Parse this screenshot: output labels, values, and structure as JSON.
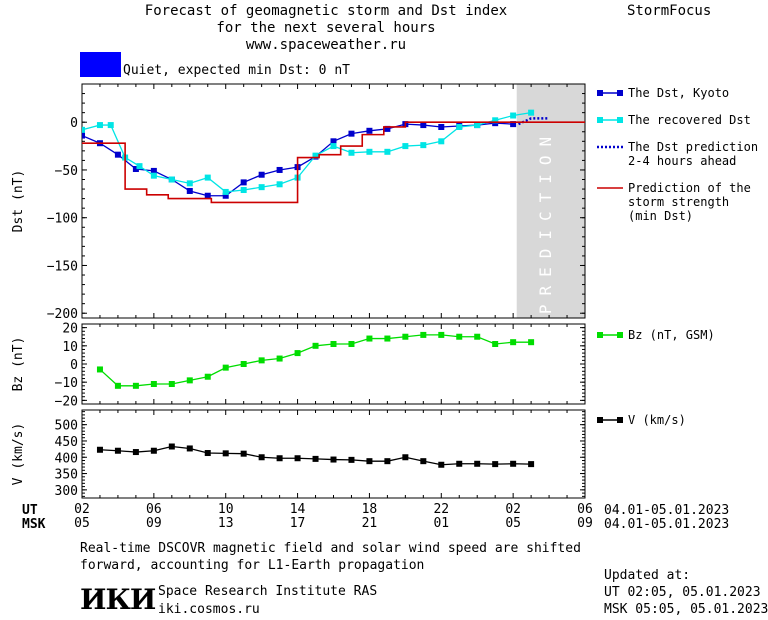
{
  "header": {
    "title_lines": [
      "Forecast of geomagnetic storm and Dst index",
      "for the next several hours",
      "www.spaceweather.ru"
    ],
    "brand": "StormFocus",
    "status_text": "Quiet, expected min Dst: 0 nT",
    "status_color": "#0000ff"
  },
  "chart_data": [
    {
      "type": "line",
      "name": "dst-panel",
      "ylabel": "Dst (nT)",
      "ylim": [
        -205,
        40
      ],
      "yticks": [
        0,
        -50,
        -100,
        -150,
        -200
      ],
      "x_range_hours": [
        0,
        28
      ],
      "prediction_band": [
        24.2,
        28
      ],
      "prediction_label": "PREDICTION",
      "series": [
        {
          "name": "The Dst, Kyoto",
          "color": "#0000cc",
          "marker": "square",
          "x": [
            0,
            1,
            2,
            3,
            4,
            5,
            6,
            7,
            8,
            9,
            10,
            11,
            12,
            13,
            14,
            15,
            16,
            17,
            18,
            19,
            20,
            21,
            22,
            23,
            24
          ],
          "y": [
            -14,
            -22,
            -34,
            -49,
            -51,
            -60,
            -72,
            -77,
            -77,
            -63,
            -55,
            -50,
            -47,
            -36,
            -20,
            -12,
            -9,
            -7,
            -2,
            -3,
            -5,
            -4,
            -3,
            -1,
            -2
          ]
        },
        {
          "name": "The recovered Dst",
          "color": "#00e5e5",
          "marker": "square",
          "x": [
            0,
            1,
            1.6,
            2.4,
            3.2,
            4,
            5,
            6,
            7,
            8,
            9,
            10,
            11,
            12,
            13,
            14,
            15,
            16,
            17,
            18,
            19,
            20,
            21,
            22,
            23,
            24,
            25
          ],
          "y": [
            -8,
            -3,
            -3,
            -37,
            -46,
            -56,
            -60,
            -64,
            -58,
            -73,
            -71,
            -68,
            -65,
            -58,
            -35,
            -25,
            -32,
            -31,
            -31,
            -25,
            -24,
            -20,
            -5,
            -3,
            2,
            7,
            10
          ]
        },
        {
          "name": "The Dst prediction 2-4 hours ahead",
          "color": "#0000cc",
          "style": "dotted",
          "x": [
            24.3,
            25,
            26
          ],
          "y": [
            -2,
            4,
            4
          ]
        },
        {
          "name": "Prediction of the storm strength (min Dst)",
          "color": "#cc0000",
          "style": "step",
          "x": [
            0,
            1.2,
            2.4,
            3.6,
            4.8,
            6,
            7.2,
            8.4,
            9.6,
            10.8,
            12,
            13.2,
            14.4,
            15.6,
            16.8,
            18,
            28
          ],
          "y": [
            -22,
            -22,
            -70,
            -76,
            -80,
            -80,
            -84,
            -84,
            -84,
            -84,
            -37,
            -34,
            -25,
            -13,
            -5,
            0,
            0
          ]
        }
      ],
      "legend": [
        {
          "label": [
            "The Dst, Kyoto"
          ],
          "color": "#0000cc",
          "style": "marker"
        },
        {
          "label": [
            "The recovered Dst"
          ],
          "color": "#00e5e5",
          "style": "marker"
        },
        {
          "label": [
            "The Dst prediction",
            "2-4 hours ahead"
          ],
          "color": "#0000cc",
          "style": "dotted"
        },
        {
          "label": [
            "Prediction of the",
            "storm strength",
            "(min Dst)"
          ],
          "color": "#cc0000",
          "style": "line"
        }
      ]
    },
    {
      "type": "line",
      "name": "bz-panel",
      "ylabel": "Bz (nT)",
      "ylim": [
        -22,
        22
      ],
      "yticks": [
        20,
        10,
        0,
        -10,
        -20
      ],
      "series": [
        {
          "name": "Bz (nT, GSM)",
          "color": "#00dd00",
          "marker": "square",
          "x": [
            1,
            2,
            3,
            4,
            5,
            6,
            7,
            8,
            9,
            10,
            11,
            12,
            13,
            14,
            15,
            16,
            17,
            18,
            19,
            20,
            21,
            22,
            23,
            24,
            25
          ],
          "y": [
            -3,
            -12,
            -12,
            -11,
            -11,
            -9,
            -7,
            -2,
            0,
            2,
            3,
            6,
            10,
            11,
            11,
            14,
            14,
            15,
            16,
            16,
            15,
            15,
            11,
            12,
            12
          ]
        }
      ],
      "legend": [
        {
          "label": [
            "Bz (nT, GSM)"
          ],
          "color": "#00dd00",
          "style": "marker"
        }
      ]
    },
    {
      "type": "line",
      "name": "v-panel",
      "ylabel": "V (km/s)",
      "ylim": [
        275,
        545
      ],
      "yticks": [
        500,
        450,
        400,
        350,
        300
      ],
      "ytick_labels": [
        "500",
        "450",
        "400",
        "350",
        "300"
      ],
      "series": [
        {
          "name": "V (km/s)",
          "color": "#000000",
          "marker": "square",
          "x": [
            1,
            2,
            3,
            4,
            5,
            6,
            7,
            8,
            9,
            10,
            11,
            12,
            13,
            14,
            15,
            16,
            17,
            18,
            19,
            20,
            21,
            22,
            23,
            24,
            25
          ],
          "y": [
            423,
            420,
            416,
            420,
            433,
            427,
            413,
            412,
            411,
            400,
            397,
            397,
            395,
            393,
            392,
            388,
            388,
            400,
            388,
            377,
            380,
            380,
            379,
            380,
            379
          ]
        }
      ],
      "legend": [
        {
          "label": [
            "V (km/s)"
          ],
          "color": "#000000",
          "style": "marker"
        }
      ]
    }
  ],
  "xaxis": {
    "ut_label": "UT",
    "msk_label": "MSK",
    "ut_ticks": [
      "02",
      "06",
      "10",
      "14",
      "18",
      "22",
      "02",
      "06"
    ],
    "msk_ticks": [
      "05",
      "09",
      "13",
      "17",
      "21",
      "01",
      "05",
      "09"
    ],
    "ut_range": "04.01-05.01.2023",
    "msk_range": "04.01-05.01.2023"
  },
  "footer": {
    "description": [
      "Real-time DSCOVR magnetic field and solar wind speed are shifted",
      "forward, accounting for L1-Earth propagation"
    ],
    "logo_text": "ИКИ",
    "institute": "Space Research Institute RAS",
    "website": "iki.cosmos.ru",
    "updated_label": "Updated at:",
    "updated_ut": "UT   02:05, 05.01.2023",
    "updated_msk": "MSK 05:05, 05.01.2023"
  }
}
